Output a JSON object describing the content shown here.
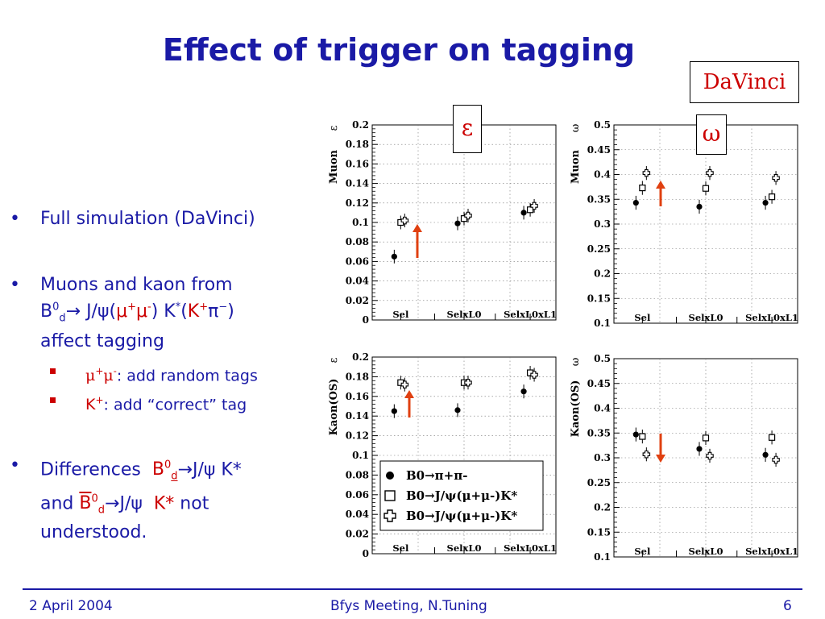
{
  "slide": {
    "title": "Effect of trigger on tagging",
    "davinci": "DaVinci",
    "symbol_eps": "ε",
    "symbol_omega": "ω"
  },
  "bullets": {
    "b1": "Full simulation (DaVinci)",
    "b2_l1": "Muons and kaon from",
    "b2_l3": "affect tagging",
    "sub1": ": add random tags",
    "sub2": ":   add “correct” tag",
    "b3_l1": "Differences",
    "b3_l3": "understood."
  },
  "footer": {
    "date": "2 April 2004",
    "meeting": "Bfys Meeting, N.Tuning",
    "page": "6"
  },
  "colors": {
    "title_blue": "#1a1aa6",
    "red": "#cc0000",
    "arrow": "#e04010"
  },
  "chart_data": [
    {
      "type": "scatter",
      "panel": "muon-efficiency",
      "ylabel": "Muon",
      "ysymbol": "ε",
      "ylim": [
        0,
        0.2
      ],
      "yticks": [
        "0",
        "0.02",
        "0.04",
        "0.06",
        "0.08",
        "0.1",
        "0.12",
        "0.14",
        "0.16",
        "0.18",
        "0.2"
      ],
      "categories": [
        "Sel",
        "SelxL0",
        "SelxL0xL1"
      ],
      "series": [
        {
          "marker": "dot",
          "values": [
            0.065,
            0.099,
            0.11
          ]
        },
        {
          "marker": "square",
          "values": [
            0.1,
            0.104,
            0.113
          ]
        },
        {
          "marker": "cross",
          "values": [
            0.102,
            0.107,
            0.117
          ]
        }
      ],
      "arrow": "up"
    },
    {
      "type": "scatter",
      "panel": "muon-mistag",
      "ylabel": "Muon",
      "ysymbol": "ω",
      "ylim": [
        0.1,
        0.5
      ],
      "yticks": [
        "0.1",
        "0.15",
        "0.2",
        "0.25",
        "0.3",
        "0.35",
        "0.4",
        "0.45",
        "0.5"
      ],
      "categories": [
        "Sel",
        "SelxL0",
        "SelxL0xL1"
      ],
      "series": [
        {
          "marker": "dot",
          "values": [
            0.343,
            0.335,
            0.343
          ]
        },
        {
          "marker": "square",
          "values": [
            0.373,
            0.372,
            0.355
          ]
        },
        {
          "marker": "cross",
          "values": [
            0.403,
            0.403,
            0.393
          ]
        }
      ],
      "arrow": "up"
    },
    {
      "type": "scatter",
      "panel": "kaon-efficiency",
      "ylabel": "Kaon(OS)",
      "ysymbol": "ε",
      "ylim": [
        0,
        0.2
      ],
      "yticks": [
        "0",
        "0.02",
        "0.04",
        "0.06",
        "0.08",
        "0.1",
        "0.12",
        "0.14",
        "0.16",
        "0.18",
        "0.2"
      ],
      "categories": [
        "Sel",
        "SelxL0",
        "SelxL0xL1"
      ],
      "series": [
        {
          "marker": "dot",
          "values": [
            0.145,
            0.146,
            0.165
          ]
        },
        {
          "marker": "square",
          "values": [
            0.174,
            0.174,
            0.184
          ]
        },
        {
          "marker": "cross",
          "values": [
            0.172,
            0.174,
            0.182
          ]
        }
      ],
      "arrow": "up",
      "legend": {
        "position": "bottom-right",
        "entries": [
          {
            "marker": "dot",
            "label": "B0→π+π-"
          },
          {
            "marker": "square",
            "label": "B0→J/ψ(μ+μ-)K*"
          },
          {
            "marker": "cross",
            "label": "B0→J/ψ(μ+μ-)K*"
          }
        ]
      }
    },
    {
      "type": "scatter",
      "panel": "kaon-mistag",
      "ylabel": "Kaon(OS)",
      "ysymbol": "ω",
      "ylim": [
        0.1,
        0.5
      ],
      "yticks": [
        "0.1",
        "0.15",
        "0.2",
        "0.25",
        "0.3",
        "0.35",
        "0.4",
        "0.45",
        "0.5"
      ],
      "categories": [
        "Sel",
        "SelxL0",
        "SelxL0xL1"
      ],
      "series": [
        {
          "marker": "dot",
          "values": [
            0.347,
            0.318,
            0.306
          ]
        },
        {
          "marker": "square",
          "values": [
            0.343,
            0.34,
            0.341
          ]
        },
        {
          "marker": "cross",
          "values": [
            0.307,
            0.304,
            0.296
          ]
        }
      ],
      "arrow": "down"
    }
  ]
}
